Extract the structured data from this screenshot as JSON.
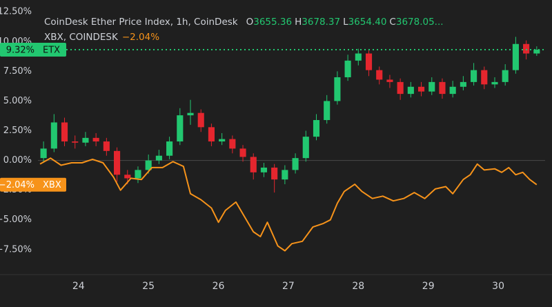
{
  "chart_data": {
    "type": "candlestick",
    "title": "CoinDesk Ether Price Index, 1h, CoinDesk",
    "stats": [
      [
        "O",
        "3655.36"
      ],
      [
        "H",
        "3678.37"
      ],
      [
        "L",
        "3654.40"
      ],
      [
        "C",
        "3678.05..."
      ]
    ],
    "xlim": [
      23.42,
      30.67
    ],
    "xticks": [
      24,
      25,
      26,
      27,
      28,
      29,
      30
    ],
    "ylim": [
      -9.6,
      13.5
    ],
    "yticks": [
      {
        "value": 12.5,
        "label": "12.50%"
      },
      {
        "value": 10,
        "label": "10.00%"
      },
      {
        "value": 7.5,
        "label": "7.50%"
      },
      {
        "value": 5,
        "label": "5.00%"
      },
      {
        "value": 2.5,
        "label": "2.50%"
      },
      {
        "value": 0,
        "label": "0.00%"
      },
      {
        "value": -2.5,
        "label": "−2.50%"
      },
      {
        "value": -5,
        "label": "−5.00%"
      },
      {
        "value": -7.5,
        "label": "−7.50%"
      }
    ],
    "series": [
      {
        "name": "ETX",
        "type": "candlestick",
        "color_up": "#22c770",
        "color_down": "#e5262e",
        "last_label": "9.32%",
        "x": [
          23.5,
          23.65,
          23.8,
          23.95,
          24.1,
          24.25,
          24.4,
          24.55,
          24.7,
          24.85,
          25.0,
          25.15,
          25.3,
          25.45,
          25.6,
          25.75,
          25.9,
          26.05,
          26.2,
          26.35,
          26.5,
          26.65,
          26.8,
          26.95,
          27.1,
          27.25,
          27.4,
          27.55,
          27.7,
          27.85,
          28.0,
          28.15,
          28.3,
          28.45,
          28.6,
          28.75,
          28.9,
          29.05,
          29.2,
          29.35,
          29.5,
          29.65,
          29.8,
          29.95,
          30.1,
          30.25,
          30.4,
          30.55
        ],
        "open": [
          0.2,
          1.0,
          3.2,
          1.6,
          1.5,
          1.9,
          1.6,
          0.8,
          -1.2,
          -1.5,
          -0.8,
          0.0,
          0.4,
          1.6,
          3.8,
          4.0,
          2.8,
          1.6,
          1.8,
          1.0,
          0.3,
          -1.0,
          -0.6,
          -1.6,
          -0.8,
          0.2,
          2.0,
          3.4,
          5.0,
          7.0,
          8.4,
          9.0,
          7.6,
          6.8,
          6.6,
          5.6,
          6.2,
          5.8,
          6.6,
          5.6,
          6.2,
          6.6,
          7.6,
          6.4,
          6.6,
          7.6,
          9.8,
          9.0
        ],
        "high": [
          1.6,
          3.9,
          3.6,
          2.1,
          2.4,
          2.3,
          1.9,
          1.1,
          -0.8,
          -0.5,
          0.5,
          0.9,
          2.0,
          4.4,
          5.1,
          4.3,
          3.1,
          2.3,
          2.1,
          1.3,
          0.6,
          -0.2,
          -0.3,
          -0.4,
          0.6,
          2.5,
          3.9,
          5.5,
          7.5,
          8.9,
          9.4,
          9.3,
          7.9,
          7.2,
          6.9,
          6.6,
          6.6,
          7.0,
          6.9,
          6.7,
          7.1,
          8.2,
          7.9,
          7.0,
          8.1,
          10.4,
          10.1,
          9.6
        ],
        "low": [
          -0.2,
          0.7,
          1.2,
          1.0,
          1.2,
          1.2,
          0.4,
          -1.8,
          -2.0,
          -1.9,
          -1.1,
          -0.3,
          0.1,
          1.3,
          3.0,
          2.4,
          1.2,
          1.3,
          0.6,
          -0.1,
          -1.6,
          -1.4,
          -2.7,
          -2.0,
          -1.1,
          -0.1,
          1.7,
          3.1,
          4.7,
          6.7,
          8.0,
          7.1,
          6.4,
          6.1,
          5.1,
          5.3,
          5.4,
          5.5,
          5.2,
          5.3,
          5.9,
          6.3,
          6.0,
          6.1,
          6.3,
          7.3,
          8.5,
          8.8
        ],
        "close": [
          1.0,
          3.2,
          1.6,
          1.5,
          1.9,
          1.6,
          0.8,
          -1.2,
          -1.5,
          -0.8,
          0.0,
          0.4,
          1.6,
          3.8,
          4.0,
          2.8,
          1.6,
          1.8,
          1.0,
          0.3,
          -1.0,
          -0.6,
          -1.6,
          -0.8,
          0.2,
          2.0,
          3.4,
          5.0,
          7.0,
          8.4,
          9.0,
          7.6,
          6.8,
          6.6,
          5.6,
          6.2,
          5.8,
          6.6,
          5.6,
          6.2,
          6.6,
          7.6,
          6.4,
          6.6,
          7.6,
          9.8,
          9.0,
          9.32
        ]
      },
      {
        "name": "XBX",
        "type": "line",
        "header": "XBX, COINDESK",
        "color": "#f7931a",
        "last_label": "−2.04%",
        "x": [
          23.45,
          23.6,
          23.75,
          23.9,
          24.05,
          24.2,
          24.35,
          24.5,
          24.6,
          24.75,
          24.9,
          25.05,
          25.2,
          25.35,
          25.5,
          25.6,
          25.75,
          25.9,
          26.0,
          26.1,
          26.25,
          26.4,
          26.5,
          26.6,
          26.7,
          26.85,
          26.95,
          27.05,
          27.2,
          27.35,
          27.5,
          27.6,
          27.7,
          27.8,
          27.95,
          28.05,
          28.2,
          28.35,
          28.5,
          28.65,
          28.8,
          28.95,
          29.1,
          29.25,
          29.35,
          29.5,
          29.6,
          29.7,
          29.8,
          29.95,
          30.05,
          30.15,
          30.25,
          30.35,
          30.45,
          30.55
        ],
        "values": [
          -0.3,
          0.2,
          -0.4,
          -0.2,
          -0.2,
          0.1,
          -0.2,
          -1.4,
          -2.5,
          -1.5,
          -1.6,
          -0.6,
          -0.6,
          -0.1,
          -0.5,
          -2.8,
          -3.3,
          -4.0,
          -5.2,
          -4.2,
          -3.5,
          -5.0,
          -6.0,
          -6.4,
          -5.2,
          -7.2,
          -7.6,
          -7.0,
          -6.8,
          -5.6,
          -5.3,
          -5.0,
          -3.6,
          -2.6,
          -2.0,
          -2.6,
          -3.2,
          -3.0,
          -3.4,
          -3.2,
          -2.7,
          -3.2,
          -2.4,
          -2.2,
          -2.8,
          -1.6,
          -1.2,
          -0.3,
          -0.8,
          -0.7,
          -1.0,
          -0.6,
          -1.2,
          -1.0,
          -1.6,
          -2.04
        ]
      }
    ]
  }
}
